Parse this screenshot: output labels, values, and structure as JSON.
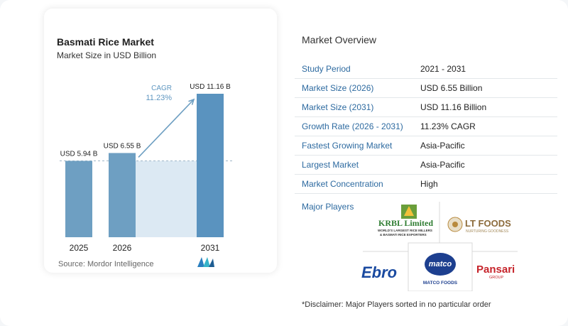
{
  "chart_data": {
    "type": "bar",
    "title": "Basmati Rice Market",
    "subtitle": "Market Size in USD Billion",
    "categories": [
      "2025",
      "2026",
      "2031"
    ],
    "values": [
      5.94,
      6.55,
      11.16
    ],
    "data_labels": [
      "USD 5.94 B",
      "USD 6.55 B",
      "USD 11.16 B"
    ],
    "ylim": [
      0,
      11.16
    ],
    "cagr_label": "CAGR",
    "cagr_value": "11.23%",
    "bar_color": "#6e9fc2",
    "bar_color_highlight": "#5a93bf",
    "band_color": "#dce9f3",
    "arrow_color": "#6e9fc2",
    "source": "Source: Mordor Intelligence"
  },
  "overview": {
    "title": "Market Overview",
    "rows": [
      {
        "label": "Study Period",
        "value": "2021 - 2031"
      },
      {
        "label": "Market Size (2026)",
        "value": "USD 6.55 Billion"
      },
      {
        "label": "Market Size (2031)",
        "value": "USD 11.16 Billion"
      },
      {
        "label": "Growth Rate (2026 - 2031)",
        "value": "11.23% CAGR"
      },
      {
        "label": "Fastest Growing Market",
        "value": "Asia-Pacific"
      },
      {
        "label": "Largest Market",
        "value": "Asia-Pacific"
      },
      {
        "label": "Market Concentration",
        "value": "High"
      }
    ],
    "players_label": "Major Players",
    "players": {
      "krbl": {
        "name": "KRBL Limited",
        "tagline_1": "WORLD'S LARGEST RICE MILLERS",
        "tagline_2": "& BASMATI RICE EXPORTERS"
      },
      "lt": {
        "name": "LT FOODS",
        "tagline": "NURTURING GOODNESS"
      },
      "ebro": {
        "name": "Ebro"
      },
      "matco": {
        "name": "matco",
        "sub": "MATCO FOODS"
      },
      "pansari": {
        "name": "Pansari",
        "sub": "GROUP"
      }
    },
    "disclaimer": "*Disclaimer: Major Players sorted in no particular order"
  }
}
